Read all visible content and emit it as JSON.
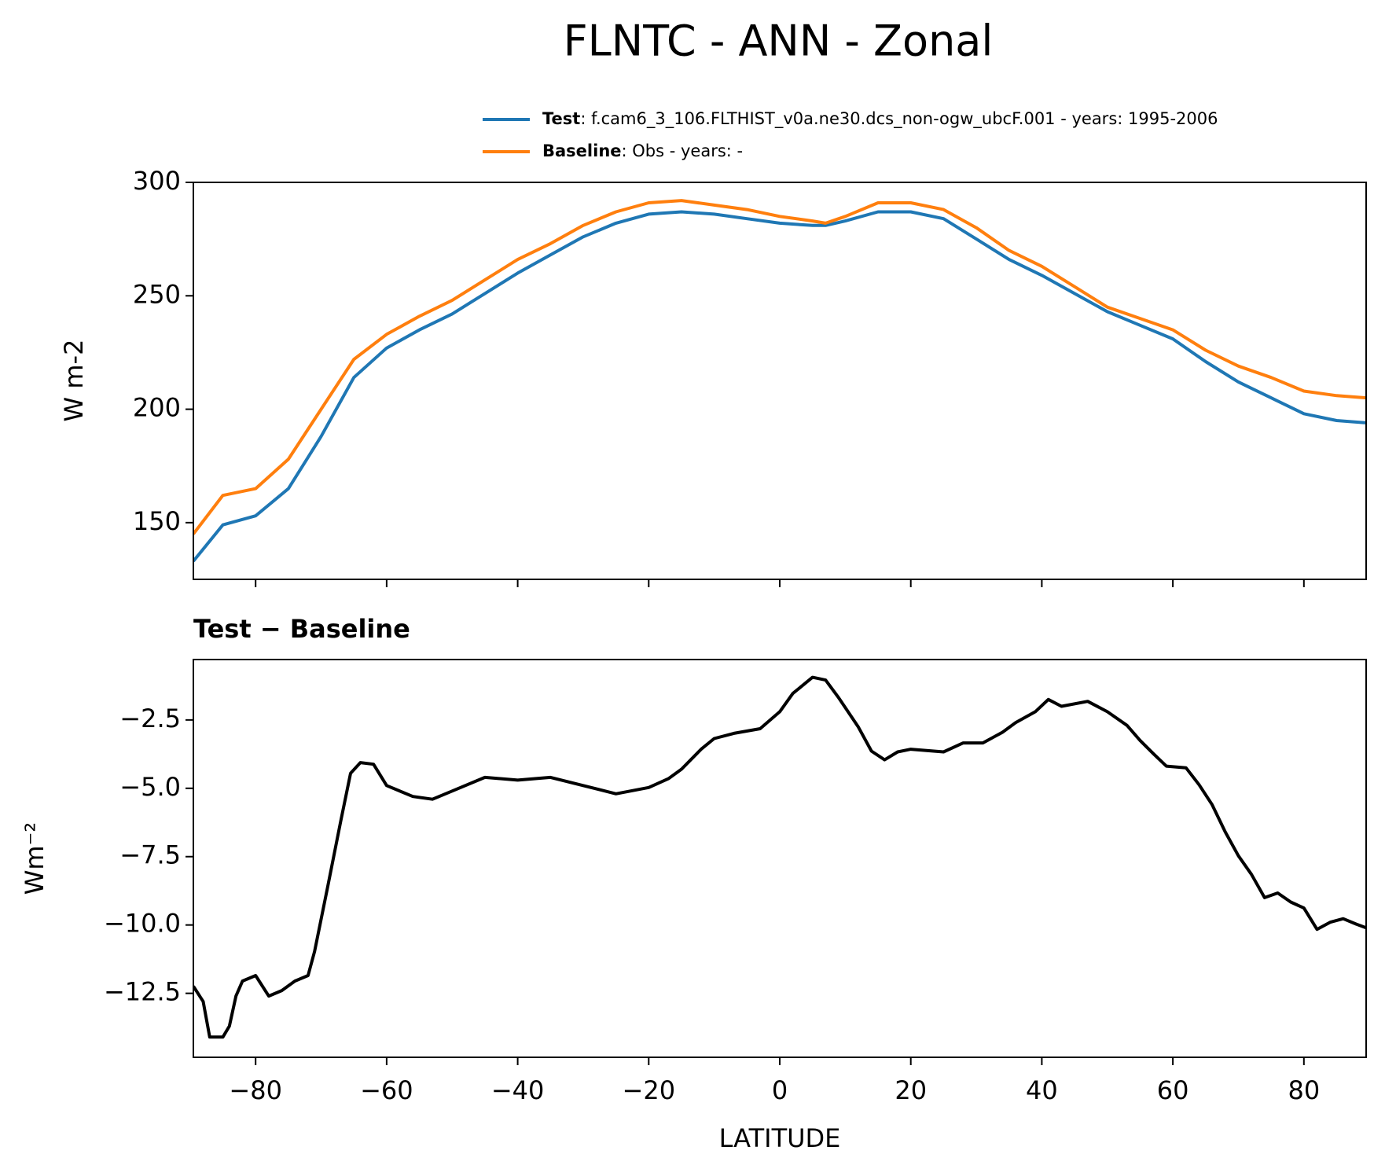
{
  "chart_data": [
    {
      "type": "line",
      "title": "FLNTC - ANN - Zonal",
      "ylabel": "W m-2",
      "x": [
        -89.5,
        -85,
        -80,
        -75,
        -70,
        -65,
        -60,
        -55,
        -50,
        -45,
        -40,
        -35,
        -30,
        -25,
        -20,
        -15,
        -10,
        -5,
        0,
        5,
        7,
        10,
        15,
        20,
        25,
        30,
        35,
        40,
        45,
        50,
        55,
        60,
        65,
        70,
        75,
        80,
        85,
        89.5
      ],
      "series": [
        {
          "name": "Test",
          "description": ": f.cam6_3_106.FLTHIST_v0a.ne30.dcs_non-ogw_ubcF.001 - years: 1995-2006",
          "color": "#1f77b4",
          "values": [
            133,
            149,
            153,
            165,
            188,
            214,
            227,
            235,
            242,
            251,
            260,
            268,
            276,
            282,
            286,
            287,
            286,
            284,
            282,
            281,
            281,
            283,
            287,
            287,
            284,
            275,
            266,
            259,
            251,
            243,
            237,
            231,
            221,
            212,
            205,
            198,
            195,
            194
          ]
        },
        {
          "name": "Baseline",
          "description": ": Obs - years: -",
          "color": "#ff7f0e",
          "values": [
            145,
            162,
            165,
            178,
            200,
            222,
            233,
            241,
            248,
            257,
            266,
            273,
            281,
            287,
            291,
            292,
            290,
            288,
            285,
            283,
            282,
            285,
            291,
            291,
            288,
            280,
            270,
            263,
            254,
            245,
            240,
            235,
            226,
            219,
            214,
            208,
            206,
            205
          ]
        }
      ],
      "xlim": [
        -89.5,
        89.5
      ],
      "xticks": [
        -80,
        -60,
        -40,
        -20,
        0,
        20,
        40,
        60,
        80
      ],
      "ylim": [
        125,
        300
      ],
      "yticks": [
        150,
        200,
        250,
        300
      ]
    },
    {
      "type": "line",
      "title": "Test − Baseline",
      "xlabel": "LATITUDE",
      "ylabel": "Wm⁻²",
      "color": "#000000",
      "x": [
        -89.5,
        -88,
        -87,
        -85,
        -84,
        -83,
        -82,
        -80,
        -78,
        -76,
        -74,
        -72,
        -71,
        -69,
        -67,
        -65.5,
        -64,
        -62,
        -60,
        -56,
        -53,
        -50,
        -45,
        -40,
        -35,
        -30,
        -25,
        -20,
        -17,
        -15,
        -12,
        -10,
        -7,
        -3,
        0,
        2,
        5,
        7,
        9,
        12,
        14,
        16,
        18,
        20,
        25,
        28,
        31,
        34,
        36,
        39,
        41,
        43,
        47,
        50,
        53,
        55,
        57,
        59,
        62,
        64,
        66,
        68,
        70,
        72,
        74,
        76,
        78,
        80,
        82,
        84,
        86,
        88,
        89.5
      ],
      "values": [
        -12.24,
        -12.8,
        -14.1,
        -14.1,
        -13.7,
        -12.6,
        -12.05,
        -11.85,
        -12.6,
        -12.4,
        -12.05,
        -11.85,
        -10.97,
        -8.6,
        -6.2,
        -4.45,
        -4.06,
        -4.12,
        -4.9,
        -5.3,
        -5.4,
        -5.1,
        -4.6,
        -4.7,
        -4.6,
        -4.9,
        -5.2,
        -4.97,
        -4.65,
        -4.3,
        -3.57,
        -3.18,
        -2.99,
        -2.82,
        -2.2,
        -1.53,
        -0.94,
        -1.04,
        -1.69,
        -2.76,
        -3.64,
        -3.96,
        -3.67,
        -3.57,
        -3.67,
        -3.34,
        -3.34,
        -2.95,
        -2.6,
        -2.2,
        -1.75,
        -2.0,
        -1.82,
        -2.2,
        -2.7,
        -3.25,
        -3.73,
        -4.19,
        -4.25,
        -4.87,
        -5.6,
        -6.6,
        -7.47,
        -8.15,
        -9.0,
        -8.83,
        -9.16,
        -9.38,
        -10.16,
        -9.9,
        -9.77,
        -9.97,
        -10.1
      ],
      "xlim": [
        -89.5,
        89.5
      ],
      "xticks": [
        {
          "value": -80,
          "label": "−80"
        },
        {
          "value": -60,
          "label": "−60"
        },
        {
          "value": -40,
          "label": "−40"
        },
        {
          "value": -20,
          "label": "−20"
        },
        0,
        20,
        40,
        60,
        80
      ],
      "ylim": [
        -14.84,
        -0.29
      ],
      "yticks": [
        {
          "value": -12.5,
          "label": "−12.5"
        },
        {
          "value": -10,
          "label": "−10.0"
        },
        {
          "value": -7.5,
          "label": "−7.5"
        },
        {
          "value": -5,
          "label": "−5.0"
        },
        {
          "value": -2.5,
          "label": "−2.5"
        }
      ]
    }
  ]
}
